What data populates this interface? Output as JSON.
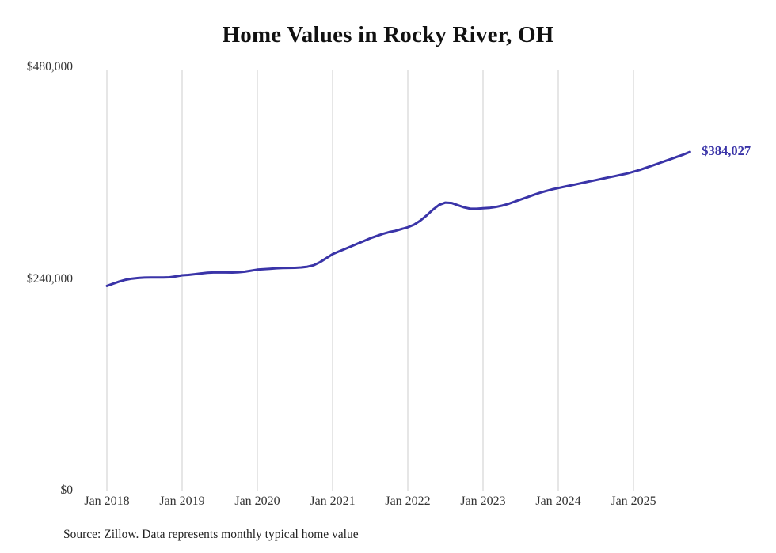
{
  "title": "Home Values in Rocky River, OH",
  "source_note": "Source: Zillow. Data represents monthly typical home value",
  "end_label": "$384,027",
  "colors": {
    "line": "#3a34a8",
    "grid": "#cccccc",
    "title_text": "#111111",
    "tick_text": "#333333",
    "source_text": "#222222"
  },
  "chart_data": {
    "type": "line",
    "title": "Home Values in Rocky River, OH",
    "xlabel": "",
    "ylabel": "",
    "ylim": [
      0,
      480000
    ],
    "grid": "vertical-only",
    "legend": "none",
    "x_start_month": "2018-01",
    "x_end_month": "2025-10",
    "x_tick_labels": [
      "Jan 2018",
      "Jan 2019",
      "Jan 2020",
      "Jan 2021",
      "Jan 2022",
      "Jan 2023",
      "Jan 2024",
      "Jan 2025"
    ],
    "y_ticks": [
      {
        "value": 0,
        "label": "$0"
      },
      {
        "value": 240000,
        "label": "$240,000"
      },
      {
        "value": 480000,
        "label": "$480,000"
      }
    ],
    "final_value": 384027,
    "final_value_label": "$384,027",
    "series": [
      {
        "name": "Typical home value (monthly)",
        "monthly_values": [
          232000,
          234500,
          237000,
          239000,
          240300,
          241000,
          241400,
          241600,
          241600,
          241500,
          241800,
          242800,
          244000,
          244500,
          245300,
          246200,
          246900,
          247300,
          247400,
          247300,
          247200,
          247500,
          248200,
          249300,
          250500,
          251000,
          251500,
          252000,
          252300,
          252500,
          252600,
          253000,
          253800,
          255500,
          259000,
          263500,
          268000,
          271000,
          274000,
          277000,
          280000,
          283000,
          286000,
          288500,
          291000,
          293000,
          294500,
          296500,
          298500,
          301500,
          306000,
          312000,
          318500,
          324000,
          326500,
          326000,
          323500,
          321000,
          319500,
          319500,
          320000,
          320500,
          321500,
          323000,
          325000,
          327500,
          330000,
          332500,
          335000,
          337500,
          339500,
          341500,
          343000,
          344500,
          346000,
          347500,
          349000,
          350500,
          352000,
          353500,
          355000,
          356500,
          358000,
          359500,
          361500,
          363500,
          366000,
          368500,
          371000,
          373500,
          376000,
          378500,
          381000,
          384027
        ]
      }
    ]
  }
}
